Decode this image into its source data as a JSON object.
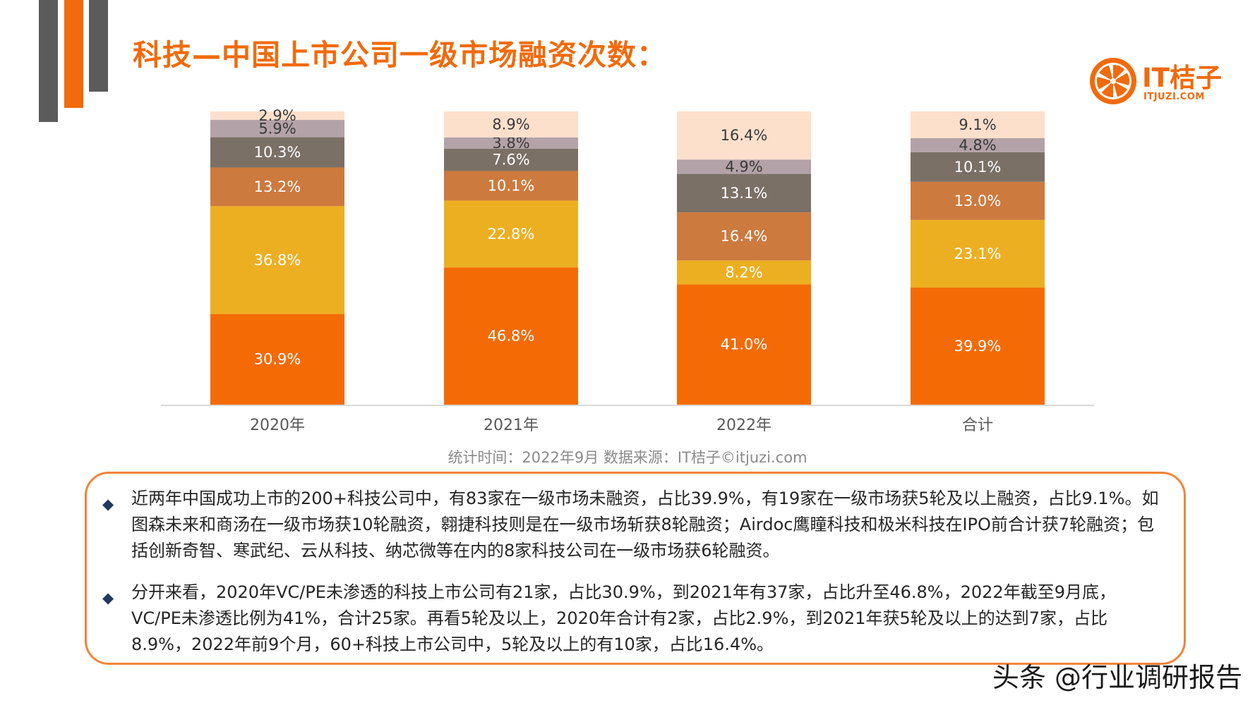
{
  "page": {
    "title": "科技—中国上市公司一级市场融资次数：",
    "logo_text": "IT桔子",
    "logo_sub": "ITJUZI.COM",
    "source": "统计时间：2022年9月   数据来源：IT桔子©itjuzi.com",
    "watermark": "头条 @行业调研报告",
    "notes": [
      "近两年中国成功上市的200+科技公司中，有83家在一级市场未融资，占比39.9%，有19家在一级市场获5轮及以上融资，占比9.1%。如图森未来和商汤在一级市场获10轮融资，翱捷科技则是在一级市场斩获8轮融资；Airdoc鹰瞳科技和极米科技在IPO前合计获7轮融资；包括创新奇智、寒武纪、云从科技、纳芯微等在内的8家科技公司在一级市场获6轮融资。",
      "分开来看，2020年VC/PE未渗透的科技上市公司有21家，占比30.9%，到2021年有37家，占比升至46.8%，2022年截至9月底，VC/PE未渗透比例为41%，合计25家。再看5轮及以上，2020年合计有2家，占比2.9%，到2021年获5轮及以上的达到7家，占比8.9%，2022年前9个月，60+科技上市公司中，5轮及以上的有10家，占比16.4%。"
    ],
    "bullet_symbol": "◆"
  },
  "chart_data": {
    "type": "bar",
    "stacked": true,
    "unit": "%",
    "categories": [
      "2020年",
      "2021年",
      "2022年",
      "合计"
    ],
    "series": [
      {
        "color": "#f46b06",
        "values": [
          30.9,
          46.8,
          41.0,
          39.9
        ],
        "labels": [
          "30.9%",
          "46.8%",
          "41.0%",
          "39.9%"
        ]
      },
      {
        "color": "#edaf22",
        "values": [
          36.8,
          22.8,
          8.2,
          23.1
        ],
        "labels": [
          "36.8%",
          "22.8%",
          "8.2%",
          "23.1%"
        ]
      },
      {
        "color": "#cd7a3e",
        "values": [
          13.2,
          10.1,
          16.4,
          13.0
        ],
        "labels": [
          "13.2%",
          "10.1%",
          "16.4%",
          "13.0%"
        ]
      },
      {
        "color": "#7b7066",
        "values": [
          10.3,
          7.6,
          13.1,
          10.1
        ],
        "labels": [
          "10.3%",
          "7.6%",
          "13.1%",
          "10.1%"
        ]
      },
      {
        "color": "#b3a2a7",
        "values": [
          5.9,
          3.8,
          4.9,
          4.8
        ],
        "labels": [
          "5.9%",
          "3.8%",
          "4.9%",
          "4.8%"
        ]
      },
      {
        "color": "#fde0cc",
        "values": [
          2.9,
          8.9,
          16.4,
          9.1
        ],
        "labels": [
          "2.9%",
          "8.9%",
          "16.4%",
          "9.1%"
        ]
      }
    ],
    "ylim": [
      0,
      100
    ],
    "legend": "none",
    "grid": false
  }
}
